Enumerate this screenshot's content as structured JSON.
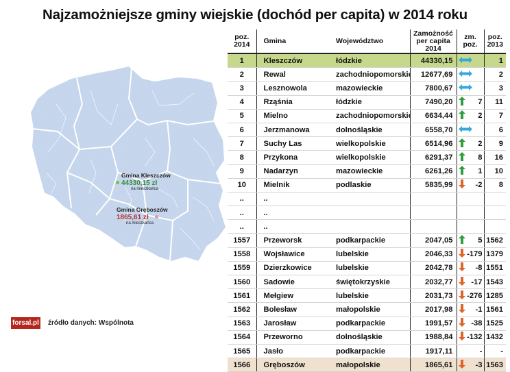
{
  "title": "Najzamożniejsze gminy wiejskie (dochód per capita) w 2014 roku",
  "headers": {
    "rank": "poz. 2014",
    "name": "Gmina",
    "voivodeship": "Województwo",
    "income": "Zamożność per capita 2014",
    "change": "zm. poz.",
    "prev": "poz. 2013"
  },
  "rows": [
    {
      "rank": "1",
      "name": "Kleszczów",
      "voiv": "łódzkie",
      "income": "44330,15",
      "icon": "arrow-both",
      "change": "",
      "prev": "1",
      "highlight": "top"
    },
    {
      "rank": "2",
      "name": "Rewal",
      "voiv": "zachodniopomorskie",
      "income": "12677,69",
      "icon": "arrow-both",
      "change": "",
      "prev": "2"
    },
    {
      "rank": "3",
      "name": "Lesznowola",
      "voiv": "mazowieckie",
      "income": "7800,67",
      "icon": "arrow-both",
      "change": "",
      "prev": "3"
    },
    {
      "rank": "4",
      "name": "Rząśnia",
      "voiv": "łódzkie",
      "income": "7490,20",
      "icon": "arrow-up",
      "change": "7",
      "prev": "11"
    },
    {
      "rank": "5",
      "name": "Mielno",
      "voiv": "zachodniopomorskie",
      "income": "6634,44",
      "icon": "arrow-up",
      "change": "2",
      "prev": "7"
    },
    {
      "rank": "6",
      "name": "Jerzmanowa",
      "voiv": "dolnośląskie",
      "income": "6558,70",
      "icon": "arrow-both",
      "change": "",
      "prev": "6"
    },
    {
      "rank": "7",
      "name": "Suchy Las",
      "voiv": "wielkopolskie",
      "income": "6514,96",
      "icon": "arrow-up",
      "change": "2",
      "prev": "9"
    },
    {
      "rank": "8",
      "name": "Przykona",
      "voiv": "wielkopolskie",
      "income": "6291,37",
      "icon": "arrow-up",
      "change": "8",
      "prev": "16"
    },
    {
      "rank": "9",
      "name": "Nadarzyn",
      "voiv": "mazowieckie",
      "income": "6261,26",
      "icon": "arrow-up",
      "change": "1",
      "prev": "10"
    },
    {
      "rank": "10",
      "name": "Mielnik",
      "voiv": "podlaskie",
      "income": "5835,99",
      "icon": "arrow-down",
      "change": "-2",
      "prev": "8"
    },
    {
      "rank": "..",
      "name": "..",
      "voiv": "",
      "income": "",
      "icon": "",
      "change": "",
      "prev": ""
    },
    {
      "rank": "..",
      "name": "..",
      "voiv": "",
      "income": "",
      "icon": "",
      "change": "",
      "prev": ""
    },
    {
      "rank": "..",
      "name": "..",
      "voiv": "",
      "income": "",
      "icon": "",
      "change": "",
      "prev": ""
    },
    {
      "rank": "1557",
      "name": "Przeworsk",
      "voiv": "podkarpackie",
      "income": "2047,05",
      "icon": "arrow-up",
      "change": "5",
      "prev": "1562"
    },
    {
      "rank": "1558",
      "name": "Wojsławice",
      "voiv": "lubelskie",
      "income": "2046,33",
      "icon": "arrow-down",
      "change": "-179",
      "prev": "1379"
    },
    {
      "rank": "1559",
      "name": "Dzierzkowice",
      "voiv": "lubelskie",
      "income": "2042,78",
      "icon": "arrow-down",
      "change": "-8",
      "prev": "1551"
    },
    {
      "rank": "1560",
      "name": "Sadowie",
      "voiv": "świętokrzyskie",
      "income": "2032,77",
      "icon": "arrow-down",
      "change": "-17",
      "prev": "1543"
    },
    {
      "rank": "1561",
      "name": "Mełgiew",
      "voiv": "lubelskie",
      "income": "2031,73",
      "icon": "arrow-down",
      "change": "-276",
      "prev": "1285"
    },
    {
      "rank": "1562",
      "name": "Bolesław",
      "voiv": "małopolskie",
      "income": "2017,98",
      "icon": "arrow-down",
      "change": "-1",
      "prev": "1561"
    },
    {
      "rank": "1563",
      "name": "Jarosław",
      "voiv": "podkarpackie",
      "income": "1991,57",
      "icon": "arrow-down",
      "change": "-38",
      "prev": "1525"
    },
    {
      "rank": "1564",
      "name": "Przeworno",
      "voiv": "dolnośląskie",
      "income": "1988,84",
      "icon": "arrow-down",
      "change": "-132",
      "prev": "1432"
    },
    {
      "rank": "1565",
      "name": "Jasło",
      "voiv": "podkarpackie",
      "income": "1917,11",
      "icon": "",
      "change": "-",
      "prev": "-"
    },
    {
      "rank": "1566",
      "name": "Gręboszów",
      "voiv": "małopolskie",
      "income": "1865,61",
      "icon": "arrow-down",
      "change": "-3",
      "prev": "1563",
      "highlight": "bottom"
    }
  ],
  "map": {
    "label1_name": "Gmina Kleszczów",
    "label1_value": "44330,15 zł",
    "label1_sub": "na mieszkańca",
    "label2_name": "Gmina Gręboszów",
    "label2_value": "1865,61 zł",
    "label2_sub": "na mieszkańca"
  },
  "logo": "forsal.pl",
  "source": "źródło danych: Wspólnota",
  "colors": {
    "highlight_top": "#c5d88b",
    "highlight_bottom": "#f0e1cf",
    "arrow_up": "#2e9e3e",
    "arrow_down": "#e0632a",
    "arrow_both": "#35a9dc",
    "map_fill": "#c7d6ec",
    "logo_bg": "#b3271e"
  }
}
